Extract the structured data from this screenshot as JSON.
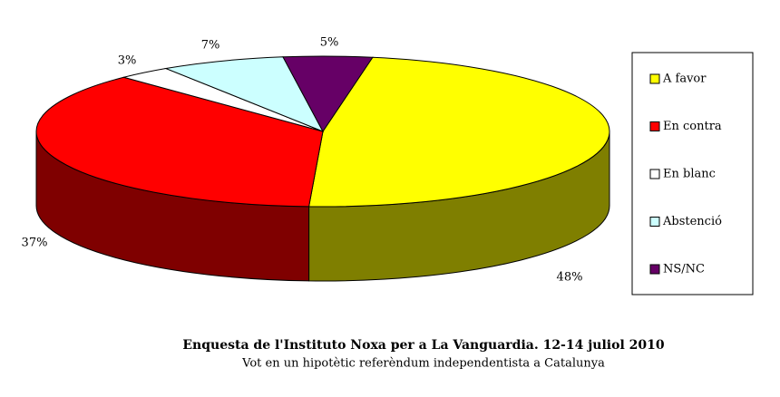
{
  "chart_data": {
    "type": "pie",
    "title": "Enquesta de l'Instituto Noxa per a La Vanguardia. 12-14 juliol 2010",
    "subtitle": "Vot en un hipotètic referèndum independentista a Catalunya",
    "categories": [
      "A favor",
      "En contra",
      "En blanc",
      "Abstenció",
      "NS/NC"
    ],
    "values": [
      48,
      37,
      3,
      7,
      5
    ],
    "value_labels": [
      "48%",
      "37%",
      "3%",
      "7%",
      "5%"
    ],
    "colors": [
      "#ffff00",
      "#ff0000",
      "#ffffff",
      "#ccffff",
      "#660066"
    ],
    "legend": "right"
  }
}
